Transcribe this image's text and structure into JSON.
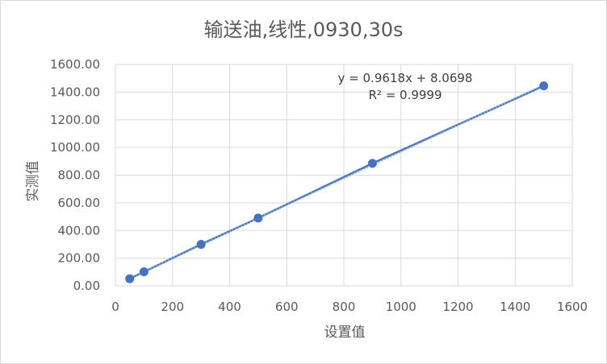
{
  "chart_data": {
    "type": "scatter",
    "title": "输送油,线性,0930,30s",
    "xlabel": "设置值",
    "ylabel": "实测值",
    "xlim": [
      0,
      1600
    ],
    "ylim": [
      0,
      1600
    ],
    "x_ticks": [
      "0",
      "200",
      "400",
      "600",
      "800",
      "1000",
      "1200",
      "1400",
      "1600"
    ],
    "y_ticks": [
      "0.00",
      "200.00",
      "400.00",
      "600.00",
      "800.00",
      "1000.00",
      "1200.00",
      "1400.00",
      "1600.00"
    ],
    "grid": true,
    "legend": "none",
    "series": [
      {
        "x": [
          50,
          100,
          300,
          500,
          900,
          1500
        ],
        "y": [
          52,
          102,
          300,
          490,
          885,
          1445
        ],
        "trendline": {
          "type": "linear",
          "slope": 0.9618,
          "intercept": 8.0698,
          "equation": "y = 0.9618x + 8.0698",
          "r2": "R² = 0.9999"
        }
      }
    ],
    "colors": {
      "series": "#4472c4",
      "grid": "#d9d9d9",
      "text": "#595959"
    }
  }
}
